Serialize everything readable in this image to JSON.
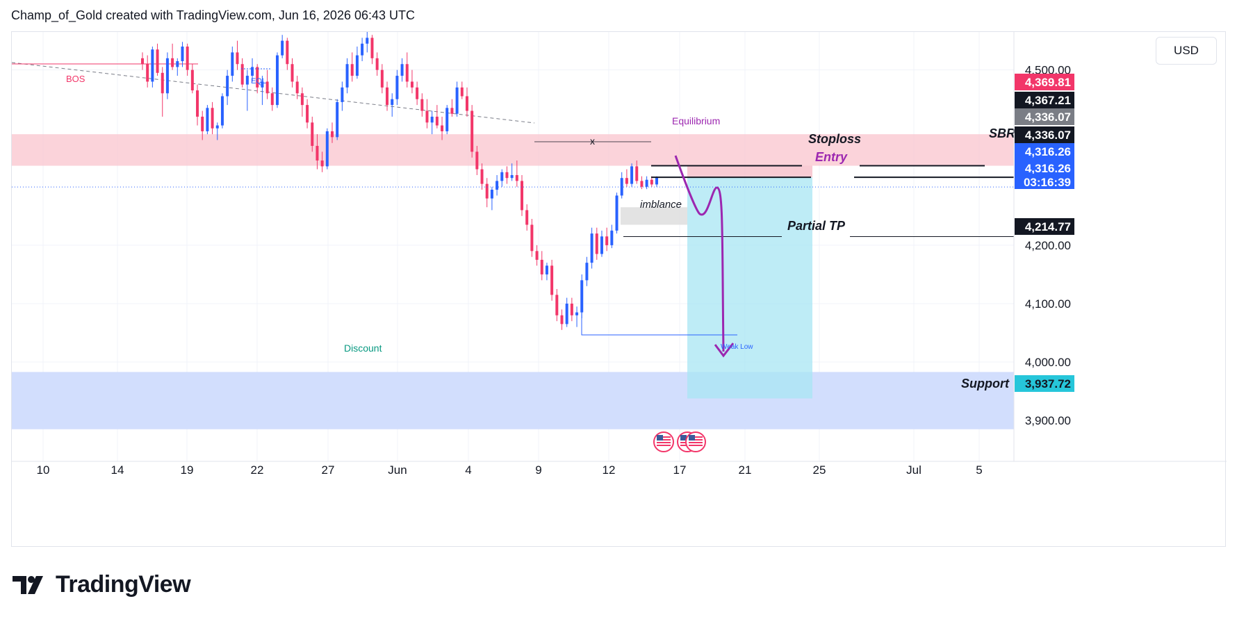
{
  "header": {
    "attribution": "Champ_of_Gold created with TradingView.com, Jun 16, 2026 06:43 UTC"
  },
  "currency": "USD",
  "brand": {
    "name": "TradingView"
  },
  "colors": {
    "bull": "#2962ff",
    "bear": "#f23669",
    "supply_zone": "#f9c4ce",
    "demand_zone": "#cddafd",
    "target_box": "#a8e6f3",
    "stop_box": "#f6b9c6",
    "path_arrow": "#9c27b0",
    "price_tag_red": "#f23669",
    "price_tag_black": "#131722",
    "price_tag_gray": "#7a7d85",
    "price_tag_blue": "#2962ff",
    "price_tag_teal": "#26c6da"
  },
  "chart_data": {
    "type": "candlestick",
    "title": "",
    "xlabel": "",
    "ylabel": "",
    "ylim": [
      3830,
      4565
    ],
    "grid": true,
    "x_ticks": [
      "10",
      "14",
      "19",
      "22",
      "27",
      "Jun",
      "4",
      "9",
      "12",
      "17",
      "21",
      "25",
      "Jul",
      "5"
    ],
    "y_ticks": [
      "4,500.00",
      "4,200.00",
      "4,100.00",
      "4,000.00",
      "3,900.00"
    ],
    "price_tags": [
      {
        "value": "4,369.81",
        "kind": "red"
      },
      {
        "value": "4,367.21",
        "kind": "black"
      },
      {
        "value": "4,336.07",
        "kind": "gray"
      },
      {
        "value": "4,336.07",
        "kind": "black"
      },
      {
        "value": "4,316.26",
        "kind": "blue"
      },
      {
        "value": "4,316.26",
        "kind": "blue"
      },
      {
        "value": "03:16:39",
        "kind": "blue"
      },
      {
        "value": "4,214.77",
        "kind": "black"
      },
      {
        "value": "3,937.72",
        "kind": "teal"
      }
    ],
    "ohlc": [
      {
        "o": 4520,
        "h": 4530,
        "l": 4500,
        "c": 4510
      },
      {
        "o": 4510,
        "h": 4525,
        "l": 4470,
        "c": 4480
      },
      {
        "o": 4480,
        "h": 4540,
        "l": 4470,
        "c": 4535
      },
      {
        "o": 4535,
        "h": 4545,
        "l": 4490,
        "c": 4495
      },
      {
        "o": 4495,
        "h": 4505,
        "l": 4420,
        "c": 4460
      },
      {
        "o": 4460,
        "h": 4530,
        "l": 4450,
        "c": 4520
      },
      {
        "o": 4520,
        "h": 4545,
        "l": 4500,
        "c": 4505
      },
      {
        "o": 4505,
        "h": 4520,
        "l": 4490,
        "c": 4515
      },
      {
        "o": 4515,
        "h": 4548,
        "l": 4505,
        "c": 4540
      },
      {
        "o": 4540,
        "h": 4545,
        "l": 4490,
        "c": 4500
      },
      {
        "o": 4500,
        "h": 4510,
        "l": 4460,
        "c": 4465
      },
      {
        "o": 4465,
        "h": 4475,
        "l": 4405,
        "c": 4420
      },
      {
        "o": 4420,
        "h": 4430,
        "l": 4380,
        "c": 4395
      },
      {
        "o": 4395,
        "h": 4440,
        "l": 4390,
        "c": 4435
      },
      {
        "o": 4435,
        "h": 4445,
        "l": 4390,
        "c": 4400
      },
      {
        "o": 4400,
        "h": 4410,
        "l": 4380,
        "c": 4405
      },
      {
        "o": 4405,
        "h": 4460,
        "l": 4400,
        "c": 4455
      },
      {
        "o": 4455,
        "h": 4500,
        "l": 4440,
        "c": 4490
      },
      {
        "o": 4490,
        "h": 4540,
        "l": 4480,
        "c": 4530
      },
      {
        "o": 4530,
        "h": 4550,
        "l": 4500,
        "c": 4510
      },
      {
        "o": 4510,
        "h": 4520,
        "l": 4470,
        "c": 4475
      },
      {
        "o": 4475,
        "h": 4500,
        "l": 4430,
        "c": 4490
      },
      {
        "o": 4490,
        "h": 4520,
        "l": 4480,
        "c": 4505
      },
      {
        "o": 4505,
        "h": 4510,
        "l": 4460,
        "c": 4470
      },
      {
        "o": 4470,
        "h": 4490,
        "l": 4440,
        "c": 4480
      },
      {
        "o": 4480,
        "h": 4500,
        "l": 4450,
        "c": 4460
      },
      {
        "o": 4460,
        "h": 4470,
        "l": 4430,
        "c": 4440
      },
      {
        "o": 4440,
        "h": 4530,
        "l": 4435,
        "c": 4525
      },
      {
        "o": 4525,
        "h": 4560,
        "l": 4520,
        "c": 4550
      },
      {
        "o": 4550,
        "h": 4555,
        "l": 4500,
        "c": 4510
      },
      {
        "o": 4510,
        "h": 4520,
        "l": 4470,
        "c": 4480
      },
      {
        "o": 4480,
        "h": 4490,
        "l": 4450,
        "c": 4460
      },
      {
        "o": 4460,
        "h": 4470,
        "l": 4420,
        "c": 4440
      },
      {
        "o": 4440,
        "h": 4450,
        "l": 4400,
        "c": 4410
      },
      {
        "o": 4410,
        "h": 4420,
        "l": 4360,
        "c": 4370
      },
      {
        "o": 4370,
        "h": 4390,
        "l": 4330,
        "c": 4345
      },
      {
        "o": 4345,
        "h": 4360,
        "l": 4325,
        "c": 4335
      },
      {
        "o": 4335,
        "h": 4400,
        "l": 4330,
        "c": 4395
      },
      {
        "o": 4395,
        "h": 4410,
        "l": 4375,
        "c": 4385
      },
      {
        "o": 4385,
        "h": 4450,
        "l": 4380,
        "c": 4445
      },
      {
        "o": 4445,
        "h": 4480,
        "l": 4430,
        "c": 4470
      },
      {
        "o": 4470,
        "h": 4520,
        "l": 4460,
        "c": 4510
      },
      {
        "o": 4510,
        "h": 4530,
        "l": 4480,
        "c": 4490
      },
      {
        "o": 4490,
        "h": 4540,
        "l": 4485,
        "c": 4525
      },
      {
        "o": 4525,
        "h": 4555,
        "l": 4515,
        "c": 4545
      },
      {
        "o": 4545,
        "h": 4565,
        "l": 4530,
        "c": 4555
      },
      {
        "o": 4555,
        "h": 4560,
        "l": 4510,
        "c": 4520
      },
      {
        "o": 4520,
        "h": 4530,
        "l": 4490,
        "c": 4500
      },
      {
        "o": 4500,
        "h": 4510,
        "l": 4460,
        "c": 4470
      },
      {
        "o": 4470,
        "h": 4480,
        "l": 4430,
        "c": 4440
      },
      {
        "o": 4440,
        "h": 4460,
        "l": 4420,
        "c": 4450
      },
      {
        "o": 4450,
        "h": 4500,
        "l": 4440,
        "c": 4490
      },
      {
        "o": 4490,
        "h": 4520,
        "l": 4480,
        "c": 4510
      },
      {
        "o": 4510,
        "h": 4530,
        "l": 4470,
        "c": 4480
      },
      {
        "o": 4480,
        "h": 4500,
        "l": 4460,
        "c": 4470
      },
      {
        "o": 4470,
        "h": 4480,
        "l": 4440,
        "c": 4450
      },
      {
        "o": 4450,
        "h": 4460,
        "l": 4420,
        "c": 4430
      },
      {
        "o": 4430,
        "h": 4450,
        "l": 4400,
        "c": 4410
      },
      {
        "o": 4410,
        "h": 4430,
        "l": 4390,
        "c": 4420
      },
      {
        "o": 4420,
        "h": 4440,
        "l": 4400,
        "c": 4405
      },
      {
        "o": 4405,
        "h": 4420,
        "l": 4380,
        "c": 4395
      },
      {
        "o": 4395,
        "h": 4440,
        "l": 4390,
        "c": 4435
      },
      {
        "o": 4435,
        "h": 4450,
        "l": 4420,
        "c": 4425
      },
      {
        "o": 4425,
        "h": 4480,
        "l": 4420,
        "c": 4470
      },
      {
        "o": 4470,
        "h": 4480,
        "l": 4450,
        "c": 4455
      },
      {
        "o": 4455,
        "h": 4470,
        "l": 4420,
        "c": 4430
      },
      {
        "o": 4430,
        "h": 4440,
        "l": 4350,
        "c": 4360
      },
      {
        "o": 4360,
        "h": 4370,
        "l": 4320,
        "c": 4330
      },
      {
        "o": 4330,
        "h": 4340,
        "l": 4295,
        "c": 4305
      },
      {
        "o": 4305,
        "h": 4315,
        "l": 4265,
        "c": 4280
      },
      {
        "o": 4280,
        "h": 4300,
        "l": 4260,
        "c": 4295
      },
      {
        "o": 4295,
        "h": 4320,
        "l": 4285,
        "c": 4310
      },
      {
        "o": 4310,
        "h": 4330,
        "l": 4300,
        "c": 4325
      },
      {
        "o": 4325,
        "h": 4335,
        "l": 4305,
        "c": 4315
      },
      {
        "o": 4315,
        "h": 4340,
        "l": 4310,
        "c": 4320
      },
      {
        "o": 4320,
        "h": 4345,
        "l": 4300,
        "c": 4310
      },
      {
        "o": 4310,
        "h": 4320,
        "l": 4250,
        "c": 4260
      },
      {
        "o": 4260,
        "h": 4270,
        "l": 4225,
        "c": 4235
      },
      {
        "o": 4235,
        "h": 4245,
        "l": 4180,
        "c": 4190
      },
      {
        "o": 4190,
        "h": 4200,
        "l": 4165,
        "c": 4175
      },
      {
        "o": 4175,
        "h": 4190,
        "l": 4140,
        "c": 4150
      },
      {
        "o": 4150,
        "h": 4170,
        "l": 4140,
        "c": 4165
      },
      {
        "o": 4165,
        "h": 4175,
        "l": 4105,
        "c": 4115
      },
      {
        "o": 4115,
        "h": 4125,
        "l": 4070,
        "c": 4080
      },
      {
        "o": 4080,
        "h": 4090,
        "l": 4055,
        "c": 4065
      },
      {
        "o": 4065,
        "h": 4110,
        "l": 4060,
        "c": 4100
      },
      {
        "o": 4100,
        "h": 4110,
        "l": 4070,
        "c": 4080
      },
      {
        "o": 4080,
        "h": 4095,
        "l": 4060,
        "c": 4085
      },
      {
        "o": 4085,
        "h": 4150,
        "l": 4075,
        "c": 4140
      },
      {
        "o": 4140,
        "h": 4180,
        "l": 4130,
        "c": 4170
      },
      {
        "o": 4170,
        "h": 4230,
        "l": 4160,
        "c": 4220
      },
      {
        "o": 4220,
        "h": 4230,
        "l": 4175,
        "c": 4185
      },
      {
        "o": 4185,
        "h": 4225,
        "l": 4180,
        "c": 4215
      },
      {
        "o": 4215,
        "h": 4230,
        "l": 4190,
        "c": 4200
      },
      {
        "o": 4200,
        "h": 4235,
        "l": 4195,
        "c": 4225
      },
      {
        "o": 4225,
        "h": 4290,
        "l": 4220,
        "c": 4285
      },
      {
        "o": 4285,
        "h": 4325,
        "l": 4280,
        "c": 4315
      },
      {
        "o": 4315,
        "h": 4330,
        "l": 4300,
        "c": 4305
      },
      {
        "o": 4305,
        "h": 4340,
        "l": 4300,
        "c": 4335
      },
      {
        "o": 4335,
        "h": 4345,
        "l": 4305,
        "c": 4310
      },
      {
        "o": 4310,
        "h": 4318,
        "l": 4296,
        "c": 4300
      },
      {
        "o": 4300,
        "h": 4318,
        "l": 4296,
        "c": 4312
      },
      {
        "o": 4312,
        "h": 4318,
        "l": 4300,
        "c": 4304
      },
      {
        "o": 4304,
        "h": 4318,
        "l": 4300,
        "c": 4316
      }
    ],
    "zones": [
      {
        "name": "Equilibrium",
        "from": 4336,
        "to": 4390
      },
      {
        "name": "Discount",
        "from": 3885,
        "to": 3983
      }
    ],
    "position": {
      "entry": 4316.26,
      "stop": 4336.07,
      "target": 3937.72,
      "partial_tp": 4214.77
    },
    "annotations": {
      "bos": "BOS",
      "eql": "EQL",
      "x": "x",
      "equilibrium": "Equilibrium",
      "discount": "Discount",
      "imbalance": "imblance",
      "weak_low": "Weak Low",
      "stoploss": "Stoploss",
      "entry": "Entry",
      "partial_tp": "Partial TP",
      "sbr": "SBR",
      "support": "Support"
    }
  }
}
